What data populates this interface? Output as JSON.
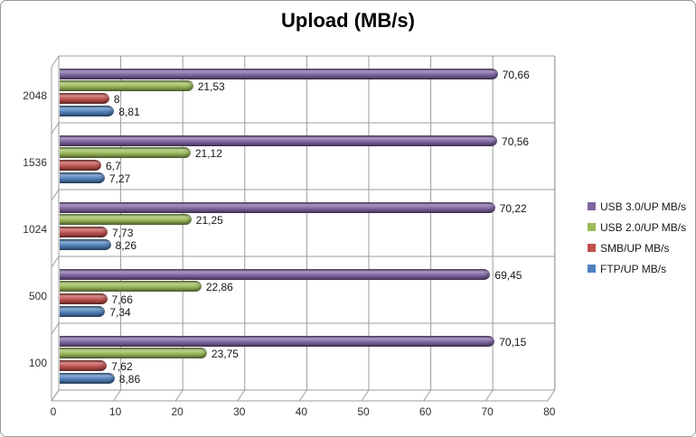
{
  "chart_data": {
    "type": "bar",
    "orientation": "horizontal",
    "style_3d": "cylinder",
    "title": "Upload (MB/s)",
    "categories": [
      "2048",
      "1536",
      "1024",
      "500",
      "100"
    ],
    "series": [
      {
        "name": "USB 3.0/UP MB/s",
        "color": "#8064A2",
        "values": [
          70.66,
          70.56,
          70.22,
          69.45,
          70.15
        ],
        "value_labels": [
          "70,66",
          "70,56",
          "70,22",
          "69,45",
          "70,15"
        ]
      },
      {
        "name": "USB 2.0/UP MB/s",
        "color": "#9BBB59",
        "values": [
          21.53,
          21.12,
          21.25,
          22.86,
          23.75
        ],
        "value_labels": [
          "21,53",
          "21,12",
          "21,25",
          "22,86",
          "23,75"
        ]
      },
      {
        "name": "SMB/UP MB/s",
        "color": "#C0504D",
        "values": [
          8,
          6.7,
          7.73,
          7.66,
          7.62
        ],
        "value_labels": [
          "8",
          "6,7",
          "7,73",
          "7,66",
          "7,62"
        ]
      },
      {
        "name": "FTP/UP MB/s",
        "color": "#4F81BD",
        "values": [
          8.81,
          7.27,
          8.26,
          7.34,
          8.86
        ],
        "value_labels": [
          "8,81",
          "7,27",
          "8,26",
          "7,34",
          "8,86"
        ]
      }
    ],
    "x_axis": {
      "min": 0,
      "max": 80,
      "step": 10,
      "tick_labels": [
        "0",
        "10",
        "20",
        "30",
        "40",
        "50",
        "60",
        "70",
        "80"
      ]
    },
    "legend": {
      "position": "right"
    },
    "grid": true,
    "colors": {
      "gridline": "#9c9c9c",
      "frame_border": "#979797",
      "axis_text": "#303030",
      "background": "#ffffff"
    }
  }
}
